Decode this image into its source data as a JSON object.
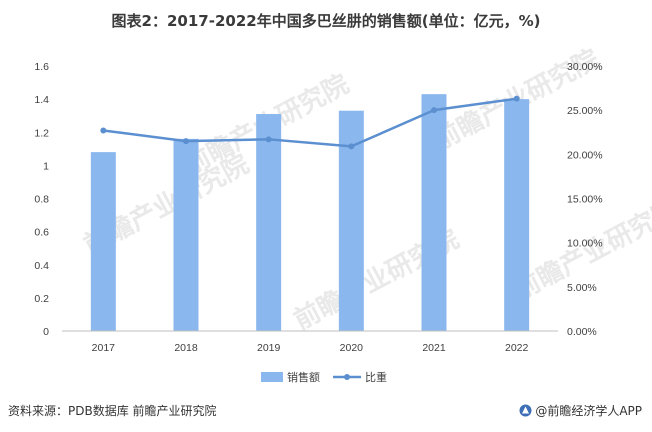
{
  "header": {
    "title": "图表2：2017-2022年中国多巴丝肼的销售额(单位：亿元，%)"
  },
  "footer": {
    "source": "资料来源：PDB数据库 前瞻产业研究院",
    "brand": "@前瞻经济学人APP"
  },
  "watermark": {
    "text": "前瞻产业研究院"
  },
  "chart_data": {
    "type": "bar",
    "categories": [
      "2017",
      "2018",
      "2019",
      "2020",
      "2021",
      "2022"
    ],
    "series": [
      {
        "name": "销售额",
        "type": "bar",
        "axis": "left",
        "color": "#8ab8ee",
        "values": [
          1.08,
          1.16,
          1.31,
          1.33,
          1.43,
          1.4
        ]
      },
      {
        "name": "比重",
        "type": "line",
        "axis": "right",
        "color": "#5b8fd0",
        "values": [
          22.7,
          21.5,
          21.7,
          20.9,
          25.0,
          26.3
        ]
      }
    ],
    "ylim": [
      0,
      1.6
    ],
    "y_ticks": [
      "0",
      "0.2",
      "0.4",
      "0.6",
      "0.8",
      "1",
      "1.2",
      "1.4",
      "1.6"
    ],
    "y2lim": [
      0,
      30
    ],
    "y2_ticks": [
      "0.00%",
      "5.00%",
      "10.00%",
      "15.00%",
      "20.00%",
      "25.00%",
      "30.00%"
    ],
    "grid": false,
    "legend": "bottom"
  }
}
